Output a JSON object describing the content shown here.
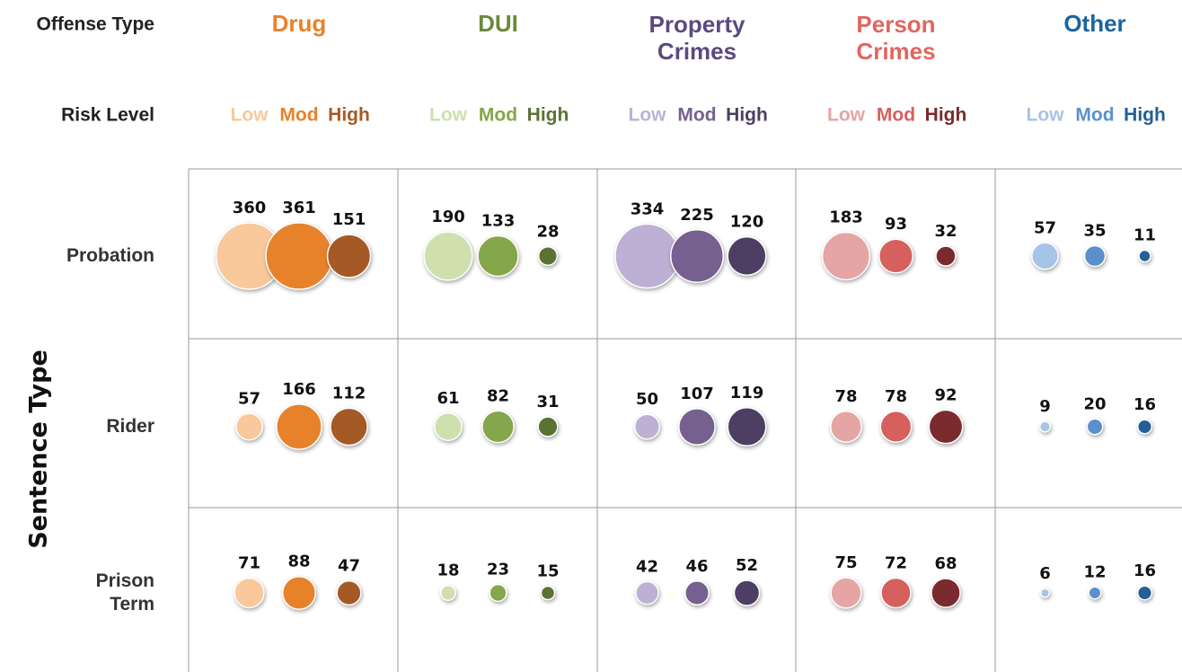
{
  "chart_data": {
    "type": "bubble_grid",
    "column_header": "Offense Type",
    "level_header": "Risk Level",
    "row_axis_label": "Sentence Type",
    "rows": [
      "Probation",
      "Rider",
      "Prison Term"
    ],
    "groups": [
      {
        "name": "Drug",
        "color": "#e8822a",
        "series": [
          {
            "name": "Low",
            "color": "#f9c89b",
            "values": [
              360,
              57,
              71
            ]
          },
          {
            "name": "Mod",
            "color": "#e8822a",
            "values": [
              361,
              166,
              88
            ]
          },
          {
            "name": "High",
            "color": "#a55a26",
            "values": [
              151,
              112,
              47
            ]
          }
        ]
      },
      {
        "name": "DUI",
        "color": "#6a8a3a",
        "series": [
          {
            "name": "Low",
            "color": "#cfdfae",
            "values": [
              190,
              61,
              18
            ]
          },
          {
            "name": "Mod",
            "color": "#85a64a",
            "values": [
              133,
              82,
              23
            ]
          },
          {
            "name": "High",
            "color": "#5a7333",
            "values": [
              28,
              31,
              15
            ]
          }
        ]
      },
      {
        "name": "Property Crimes",
        "color": "#5a4a80",
        "series": [
          {
            "name": "Low",
            "color": "#bcb1d4",
            "values": [
              334,
              50,
              42
            ]
          },
          {
            "name": "Mod",
            "color": "#75608f",
            "values": [
              225,
              107,
              46
            ]
          },
          {
            "name": "High",
            "color": "#4d3f63",
            "values": [
              120,
              119,
              52
            ]
          }
        ]
      },
      {
        "name": "Person Crimes",
        "color": "#e06660",
        "series": [
          {
            "name": "Low",
            "color": "#e5a5a5",
            "values": [
              183,
              78,
              75
            ]
          },
          {
            "name": "Mod",
            "color": "#d6605e",
            "values": [
              93,
              78,
              72
            ]
          },
          {
            "name": "High",
            "color": "#7b2a2e",
            "values": [
              32,
              92,
              68
            ]
          }
        ]
      },
      {
        "name": "Other",
        "color": "#1a64a0",
        "series": [
          {
            "name": "Low",
            "color": "#a6c4e6",
            "values": [
              57,
              9,
              6
            ]
          },
          {
            "name": "Mod",
            "color": "#5a90cc",
            "values": [
              35,
              20,
              12
            ]
          },
          {
            "name": "High",
            "color": "#245f95",
            "values": [
              11,
              16,
              16
            ]
          }
        ]
      }
    ]
  }
}
